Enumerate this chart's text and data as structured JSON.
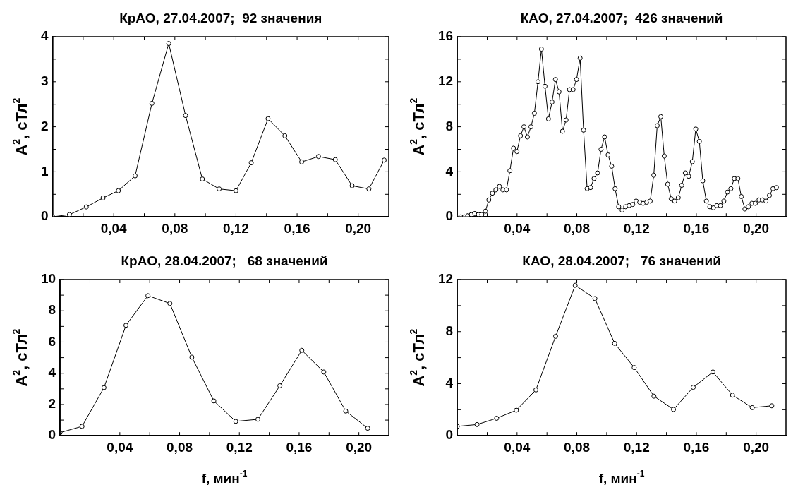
{
  "chart_data": [
    {
      "type": "line",
      "title": "КрАО, 27.04.2007;  92 значения",
      "ylabel": "A$^{2}$, сТл$^{2}$",
      "color": "#000000",
      "marker": "circle",
      "grid": false,
      "x": [
        0,
        0.011,
        0.022,
        0.033,
        0.043,
        0.054,
        0.065,
        0.076,
        0.087,
        0.098,
        0.109,
        0.12,
        0.13,
        0.141,
        0.152,
        0.163,
        0.174,
        0.185,
        0.196,
        0.207,
        0.217
      ],
      "values": [
        0,
        0.05,
        0.22,
        0.42,
        0.58,
        0.91,
        2.52,
        3.85,
        2.25,
        0.84,
        0.62,
        0.58,
        1.2,
        2.18,
        1.8,
        1.22,
        1.34,
        1.27,
        0.69,
        0.62,
        1.26
      ],
      "xlim": [
        0,
        0.22
      ],
      "xticks": [
        {
          "value": 0.02,
          "label": null
        },
        {
          "value": 0.04,
          "label": "0,04"
        },
        {
          "value": 0.06,
          "label": null
        },
        {
          "value": 0.08,
          "label": "0,08"
        },
        {
          "value": 0.1,
          "label": null
        },
        {
          "value": 0.12,
          "label": "0,12"
        },
        {
          "value": 0.14,
          "label": null
        },
        {
          "value": 0.16,
          "label": "0,16"
        },
        {
          "value": 0.18,
          "label": null
        },
        {
          "value": 0.2,
          "label": "0,20"
        }
      ],
      "ylim": [
        0,
        4
      ],
      "yticks": [
        0,
        {
          "value": 0.5,
          "label": null
        },
        1,
        {
          "value": 1.5,
          "label": null
        },
        2,
        {
          "value": 2.5,
          "label": null
        },
        3,
        {
          "value": 3.5,
          "label": null
        },
        4
      ]
    },
    {
      "type": "line",
      "title": "КАО, 27.04.2007;  426 значений",
      "ylabel": "A$^{2}$, сТл$^{2}$",
      "color": "#000000",
      "marker": "circle",
      "grid": false,
      "x": [
        0,
        0.0023,
        0.0047,
        0.007,
        0.0094,
        0.0117,
        0.0141,
        0.0164,
        0.0188,
        0.0211,
        0.0235,
        0.0258,
        0.0282,
        0.0305,
        0.0329,
        0.0352,
        0.0376,
        0.0399,
        0.0423,
        0.0446,
        0.0469,
        0.0493,
        0.0516,
        0.054,
        0.0563,
        0.0587,
        0.061,
        0.0634,
        0.0657,
        0.0681,
        0.0704,
        0.0728,
        0.0751,
        0.0775,
        0.0798,
        0.0822,
        0.0845,
        0.0869,
        0.0892,
        0.0915,
        0.0939,
        0.0962,
        0.0986,
        0.1009,
        0.1033,
        0.1056,
        0.108,
        0.1103,
        0.1127,
        0.115,
        0.1174,
        0.1197,
        0.1221,
        0.1244,
        0.1268,
        0.1291,
        0.1315,
        0.1338,
        0.1362,
        0.1385,
        0.1408,
        0.1432,
        0.1455,
        0.1479,
        0.1502,
        0.1526,
        0.1549,
        0.1573,
        0.1596,
        0.162,
        0.1643,
        0.1667,
        0.169,
        0.1714,
        0.1737,
        0.1761,
        0.1784,
        0.1808,
        0.1831,
        0.1854,
        0.1878,
        0.1901,
        0.1925,
        0.1948,
        0.1972,
        0.1995,
        0.2019,
        0.2042,
        0.2066,
        0.2089,
        0.2113,
        0.2136
      ],
      "values": [
        0,
        0,
        0,
        0.1,
        0.2,
        0.3,
        0.2,
        0.2,
        0.5,
        1.5,
        2.1,
        2.4,
        2.7,
        2.4,
        2.4,
        4.1,
        6.1,
        5.8,
        7.2,
        8,
        7.1,
        8,
        9.2,
        12,
        14.9,
        11.6,
        8.7,
        10.2,
        12.2,
        11.1,
        7.6,
        8.6,
        11.3,
        11.3,
        12.2,
        14.1,
        7.7,
        2.5,
        2.6,
        3.4,
        3.9,
        6,
        7.1,
        5.5,
        4.5,
        2.5,
        0.9,
        0.6,
        0.9,
        1,
        1.1,
        1.4,
        1.3,
        1.2,
        1.3,
        1.4,
        3.7,
        8.1,
        8.9,
        5.4,
        2.9,
        1.6,
        1.4,
        1.7,
        2.8,
        3.9,
        3.6,
        4.9,
        7.8,
        6.7,
        3.2,
        1.4,
        0.9,
        0.8,
        1,
        1,
        1.4,
        2.2,
        2.5,
        3.4,
        3.4,
        1.8,
        0.7,
        0.9,
        1.2,
        1.2,
        1.5,
        1.5,
        1.4,
        1.9,
        2.5,
        2.6
      ],
      "xlim": [
        0,
        0.22
      ],
      "xticks": [
        {
          "value": 0.02,
          "label": null
        },
        {
          "value": 0.04,
          "label": "0,04"
        },
        {
          "value": 0.06,
          "label": null
        },
        {
          "value": 0.08,
          "label": "0,08"
        },
        {
          "value": 0.1,
          "label": null
        },
        {
          "value": 0.12,
          "label": "0,12"
        },
        {
          "value": 0.14,
          "label": null
        },
        {
          "value": 0.16,
          "label": "0,16"
        },
        {
          "value": 0.18,
          "label": null
        },
        {
          "value": 0.2,
          "label": "0,20"
        }
      ],
      "ylim": [
        0,
        16
      ],
      "yticks": [
        0,
        {
          "value": 2,
          "label": null
        },
        4,
        {
          "value": 6,
          "label": null
        },
        8,
        {
          "value": 10,
          "label": null
        },
        12,
        {
          "value": 14,
          "label": null
        },
        16
      ]
    },
    {
      "type": "line",
      "title": "КрАО, 28.04.2007;   68 значений",
      "ylabel": "A$^{2}$, сТл$^{2}$",
      "xlabel": "f, мин$^{-1}$",
      "color": "#000000",
      "marker": "circle",
      "grid": false,
      "x": [
        0,
        0.0147,
        0.0294,
        0.0441,
        0.0588,
        0.0735,
        0.0882,
        0.1029,
        0.1176,
        0.1324,
        0.1471,
        0.1618,
        0.1765,
        0.1912,
        0.2059
      ],
      "values": [
        0.2,
        0.6,
        3.08,
        7.07,
        8.97,
        8.47,
        5.03,
        2.23,
        0.92,
        1.05,
        3.2,
        5.47,
        4.08,
        1.58,
        0.48
      ],
      "xlim": [
        0,
        0.22
      ],
      "xticks": [
        {
          "value": 0.02,
          "label": null
        },
        {
          "value": 0.04,
          "label": "0,04"
        },
        {
          "value": 0.06,
          "label": null
        },
        {
          "value": 0.08,
          "label": "0,08"
        },
        {
          "value": 0.1,
          "label": null
        },
        {
          "value": 0.12,
          "label": "0,12"
        },
        {
          "value": 0.14,
          "label": null
        },
        {
          "value": 0.16,
          "label": "0,16"
        },
        {
          "value": 0.18,
          "label": null
        },
        {
          "value": 0.2,
          "label": "0,20"
        }
      ],
      "ylim": [
        0,
        10
      ],
      "yticks": [
        0,
        {
          "value": 1,
          "label": null
        },
        2,
        {
          "value": 3,
          "label": null
        },
        4,
        {
          "value": 5,
          "label": null
        },
        6,
        {
          "value": 7,
          "label": null
        },
        8,
        {
          "value": 9,
          "label": null
        },
        10
      ]
    },
    {
      "type": "line",
      "title": "КАО, 28.04.2007;   76 значений",
      "ylabel": "A$^{2}$, сТл$^{2}$",
      "xlabel": "f, мин$^{-1}$",
      "color": "#000000",
      "marker": "circle",
      "grid": false,
      "x": [
        0,
        0.0132,
        0.0263,
        0.0395,
        0.0526,
        0.0658,
        0.0789,
        0.0921,
        0.1053,
        0.1184,
        0.1316,
        0.1447,
        0.1579,
        0.1711,
        0.1842,
        0.1974,
        0.2105
      ],
      "values": [
        0.72,
        0.86,
        1.34,
        1.96,
        3.52,
        7.64,
        11.56,
        10.54,
        7.1,
        5.24,
        3.04,
        2.02,
        3.72,
        4.9,
        3.12,
        2.16,
        2.3
      ],
      "xlim": [
        0,
        0.22
      ],
      "xticks": [
        {
          "value": 0.02,
          "label": null
        },
        {
          "value": 0.04,
          "label": "0,04"
        },
        {
          "value": 0.06,
          "label": null
        },
        {
          "value": 0.08,
          "label": "0,08"
        },
        {
          "value": 0.1,
          "label": null
        },
        {
          "value": 0.12,
          "label": "0,12"
        },
        {
          "value": 0.14,
          "label": null
        },
        {
          "value": 0.16,
          "label": "0,16"
        },
        {
          "value": 0.18,
          "label": null
        },
        {
          "value": 0.2,
          "label": "0,20"
        }
      ],
      "ylim": [
        0,
        12
      ],
      "yticks": [
        0,
        {
          "value": 2,
          "label": null
        },
        4,
        {
          "value": 6,
          "label": null
        },
        8,
        {
          "value": 10,
          "label": null
        },
        12
      ]
    }
  ]
}
